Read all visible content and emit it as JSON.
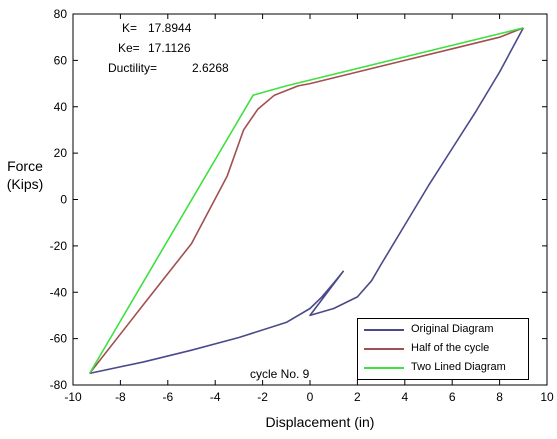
{
  "chart_data": {
    "type": "line",
    "xlabel": "Displacement (in)",
    "ylabel_lines": [
      "Force",
      "(Kips)"
    ],
    "xlim": [
      -10,
      10
    ],
    "ylim": [
      -80,
      80
    ],
    "x_ticks": [
      "-10",
      "-8",
      "-6",
      "-4",
      "-2",
      "0",
      "2",
      "4",
      "6",
      "8",
      "10"
    ],
    "y_ticks": [
      "80",
      "60",
      "40",
      "20",
      "0",
      "-20",
      "-40",
      "-60",
      "-80"
    ],
    "grid": false,
    "legend_position": "bottom-right",
    "annotations": {
      "stats": [
        {
          "label": "K=",
          "value": "17.8944"
        },
        {
          "label": "Ke=",
          "value": "17.1126"
        },
        {
          "label": "Ductility=",
          "value": "2.6268"
        }
      ],
      "cycle": "cycle No. 9"
    },
    "series": [
      {
        "name": "Original Diagram",
        "color": "#4a4a8a",
        "points": [
          [
            -9.3,
            -75
          ],
          [
            -7,
            -70
          ],
          [
            -5,
            -65
          ],
          [
            -3,
            -59.5
          ],
          [
            -1,
            -53
          ],
          [
            0,
            -47
          ],
          [
            0.5,
            -42
          ],
          [
            1,
            -36
          ],
          [
            1.4,
            -31
          ],
          [
            0,
            -50
          ],
          [
            1,
            -47
          ],
          [
            2,
            -42
          ],
          [
            2.6,
            -35
          ],
          [
            3,
            -28
          ],
          [
            4,
            -11
          ],
          [
            5,
            6
          ],
          [
            6,
            22
          ],
          [
            7,
            38
          ],
          [
            8,
            55
          ],
          [
            9,
            74
          ]
        ]
      },
      {
        "name": "Half of the cycle",
        "color": "#a05050",
        "points": [
          [
            -9.3,
            -75
          ],
          [
            -7,
            -45
          ],
          [
            -5,
            -19
          ],
          [
            -3.5,
            10
          ],
          [
            -2.8,
            30
          ],
          [
            -2.2,
            39
          ],
          [
            -1.5,
            45
          ],
          [
            -0.5,
            49
          ],
          [
            0,
            50
          ],
          [
            2,
            55
          ],
          [
            4,
            60
          ],
          [
            6,
            65
          ],
          [
            8,
            70
          ],
          [
            9,
            74
          ]
        ]
      },
      {
        "name": "Two Lined Diagram",
        "color": "#40e040",
        "points": [
          [
            -9.3,
            -75
          ],
          [
            -2.4,
            45
          ],
          [
            -1,
            49
          ],
          [
            9,
            74
          ]
        ]
      }
    ]
  }
}
